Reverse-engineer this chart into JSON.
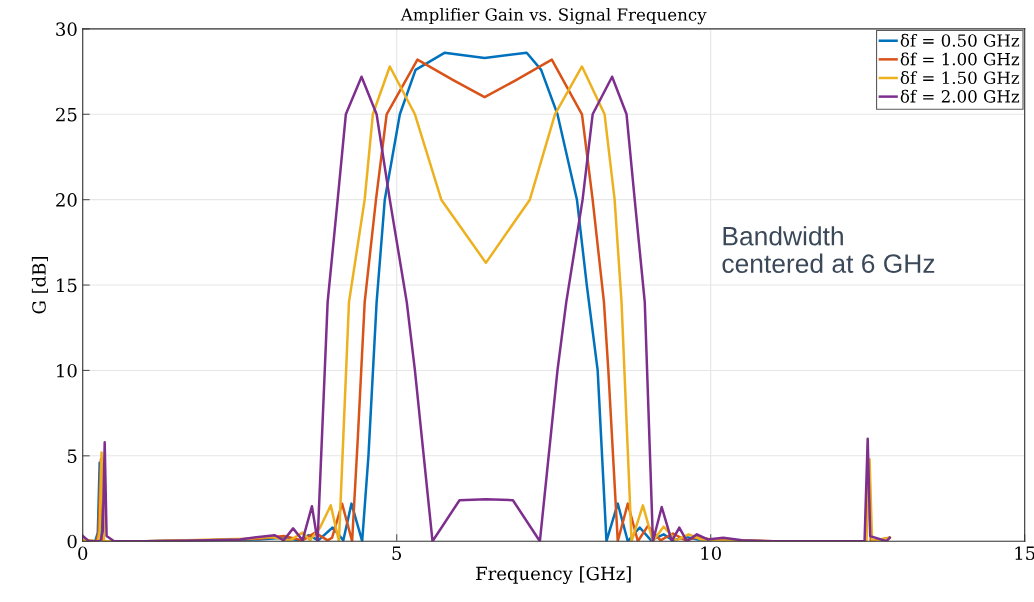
{
  "chart_data": {
    "type": "line",
    "title": "Amplifier Gain vs. Signal Frequency",
    "xlabel": "Frequency [GHz]",
    "ylabel": "G [dB]",
    "xlim": [
      0,
      15
    ],
    "xticks": [
      0,
      5,
      10,
      15
    ],
    "ylim": [
      0,
      30
    ],
    "yticks": [
      0,
      5,
      10,
      15,
      20,
      25,
      30
    ],
    "grid": true,
    "legend": "top right",
    "annotations": [
      "Bandwidth\ncentered at 6 GHz"
    ],
    "series": [
      {
        "name": "δf = 0.50 GHz",
        "color": "#0072bd",
        "x": [
          0,
          0.2,
          0.24,
          0.27,
          0.3,
          0.34,
          1.0,
          2.0,
          2.8,
          3.2,
          3.45,
          3.6,
          3.75,
          3.98,
          4.15,
          4.28,
          4.45,
          4.55,
          4.68,
          4.81,
          5.05,
          5.3,
          5.76,
          6.4,
          7.07,
          7.3,
          7.56,
          7.87,
          8.03,
          8.2,
          8.34,
          8.52,
          8.68,
          8.87,
          9.05,
          9.25,
          9.4,
          9.6,
          9.8,
          10.0
        ],
        "values": [
          0.05,
          0,
          0.5,
          4.6,
          0.3,
          0,
          0,
          0.05,
          0.1,
          0.2,
          0.05,
          0.35,
          0.05,
          0.8,
          0.05,
          2.2,
          0,
          5,
          14,
          20,
          25,
          27.6,
          28.6,
          28.3,
          28.6,
          27.6,
          25,
          20,
          14.9,
          10,
          0,
          2.2,
          0,
          0.8,
          0.05,
          0.4,
          0.05,
          0.25,
          0.1,
          0.05
        ]
      },
      {
        "name": "δf = 1.00 GHz",
        "color": "#d95319",
        "x": [
          0,
          0.22,
          0.25,
          0.29,
          0.33,
          1.0,
          2.0,
          2.8,
          3.2,
          3.5,
          3.7,
          3.9,
          3.97,
          4.13,
          4.29,
          4.38,
          4.49,
          4.67,
          4.84,
          5.33,
          5.9,
          6.4,
          6.9,
          7.47,
          7.95,
          8.12,
          8.3,
          8.37,
          8.52,
          8.68,
          8.84,
          9.0,
          9.2,
          9.4,
          9.6,
          9.8,
          10.0,
          11.0,
          12.0,
          12.46,
          12.51,
          12.55,
          12.85
        ],
        "values": [
          0.05,
          0,
          0.5,
          4.8,
          0,
          0,
          0.05,
          0.15,
          0.3,
          0.05,
          0.5,
          0.05,
          0.2,
          2.2,
          0,
          6,
          14,
          20,
          25,
          28.2,
          27.0,
          26.0,
          27.0,
          28.2,
          25,
          20,
          14,
          10,
          0,
          2.2,
          0,
          0.9,
          0.05,
          0.45,
          0.05,
          0.25,
          0.1,
          0,
          0,
          0,
          4.7,
          0,
          0.2
        ]
      },
      {
        "name": "δf = 1.50 GHz",
        "color": "#edb120",
        "x": [
          0,
          0.24,
          0.27,
          0.3,
          0.34,
          1.0,
          2.6,
          3.0,
          3.3,
          3.5,
          3.62,
          3.78,
          3.95,
          4.08,
          4.24,
          4.49,
          4.62,
          4.89,
          5.29,
          5.71,
          6.42,
          7.12,
          7.52,
          7.95,
          8.31,
          8.47,
          8.58,
          8.74,
          8.92,
          9.08,
          9.25,
          9.45,
          9.65,
          9.85,
          10.1,
          11.0,
          12.0,
          12.48,
          12.53,
          12.57,
          12.85
        ],
        "values": [
          0.05,
          0,
          0.6,
          5.2,
          0,
          0,
          0.15,
          0.25,
          0.05,
          0.5,
          0.05,
          0.8,
          2.1,
          0,
          14,
          20,
          25,
          27.8,
          25,
          20,
          16.3,
          20,
          25,
          27.8,
          25,
          20,
          14,
          0,
          2.1,
          0,
          0.85,
          0.05,
          0.4,
          0.1,
          0.05,
          0,
          0,
          0,
          4.8,
          0,
          0.2
        ]
      },
      {
        "name": "δf = 2.00 GHz",
        "color": "#7e2f8e",
        "x": [
          0,
          0.1,
          0.28,
          0.32,
          0.35,
          0.38,
          0.5,
          1.0,
          2.0,
          2.5,
          2.8,
          3.06,
          3.2,
          3.35,
          3.5,
          3.65,
          3.74,
          3.9,
          4.06,
          4.19,
          4.44,
          4.68,
          4.89,
          5.16,
          5.29,
          5.57,
          6.0,
          6.42,
          6.85,
          7.28,
          7.56,
          7.7,
          7.96,
          8.12,
          8.43,
          8.66,
          8.79,
          8.95,
          9.08,
          9.22,
          9.38,
          9.5,
          9.62,
          9.78,
          9.95,
          10.2,
          10.5,
          11.0,
          12.0,
          12.45,
          12.5,
          12.54,
          12.8,
          12.85
        ],
        "values": [
          0.3,
          0,
          0,
          0.6,
          5.8,
          0.3,
          0,
          0,
          0.05,
          0.1,
          0.25,
          0.35,
          0.05,
          0.75,
          0.05,
          2.05,
          0,
          14,
          20,
          25,
          27.2,
          25,
          20,
          14,
          10,
          0,
          2.4,
          2.45,
          2.4,
          0,
          10,
          14,
          20,
          25,
          27.2,
          25,
          20,
          14,
          0,
          2.0,
          0,
          0.8,
          0,
          0.4,
          0.1,
          0.2,
          0.05,
          0,
          0,
          0,
          6.0,
          0.3,
          0,
          0.2
        ]
      }
    ]
  }
}
